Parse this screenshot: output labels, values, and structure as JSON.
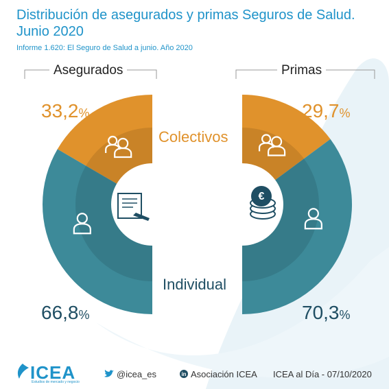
{
  "title": "Distribución de asegurados y primas Seguros de Salud. Junio 2020",
  "subtitle": "Informe 1.620: El Seguro de Salud a junio. Año 2020",
  "colors": {
    "accent": "#1f93c9",
    "colectivos": "#e0922c",
    "individual": "#3d8a99"
  },
  "chart_data": [
    {
      "type": "pie",
      "title": "Asegurados",
      "labels": [
        "Colectivos",
        "Individual"
      ],
      "values": [
        33.2,
        66.8
      ],
      "value_labels": [
        "33,2",
        "66,8"
      ],
      "unit": "%"
    },
    {
      "type": "pie",
      "title": "Primas",
      "labels": [
        "Colectivos",
        "Individual"
      ],
      "values": [
        29.7,
        70.3
      ],
      "value_labels": [
        "29,7",
        "70,3"
      ],
      "unit": "%"
    }
  ],
  "categories": {
    "colectivos": "Colectivos",
    "individual": "Individual"
  },
  "icons": {
    "center_left": "document-pen-icon",
    "center_right": "coins-euro-icon",
    "group": "group-users-icon",
    "user": "user-icon"
  },
  "footer": {
    "brand": "ICEA",
    "tagline": "Estudios de mercado y negocio",
    "twitter": "@icea_es",
    "linkedin": "Asociación ICEA",
    "date_line": "ICEA al Día - 07/10/2020"
  }
}
